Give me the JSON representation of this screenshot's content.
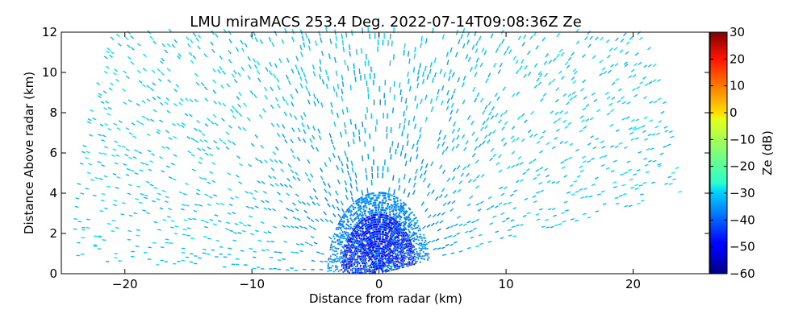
{
  "chart_data": {
    "type": "heatmap",
    "title": "LMU miraMACS 253.4 Deg. 2022-07-14T09:08:36Z  Ze",
    "xlabel": "Distance from radar (km)",
    "ylabel": "Distance Above radar  (km)",
    "xlim": [
      -25,
      26
    ],
    "ylim": [
      0,
      12
    ],
    "x_ticks": [
      -20,
      -10,
      0,
      10,
      20
    ],
    "x_tick_labels": [
      "−20",
      "−10",
      "0",
      "10",
      "20"
    ],
    "y_ticks": [
      0,
      2,
      4,
      6,
      8,
      10,
      12
    ],
    "y_tick_labels": [
      "0",
      "2",
      "4",
      "6",
      "8",
      "10",
      "12"
    ],
    "grid": false,
    "scan": {
      "description": "RHI scan, polar sector from about 10 deg elevation (right) to about 178 deg (left)",
      "min_elevation_deg": 10,
      "max_elevation_deg": 178,
      "max_range_km": 24,
      "near_radar_ze_dB": -45,
      "far_ze_dB": -30
    },
    "colorbar": {
      "label": "Ze (dB)",
      "min": -60,
      "max": 30,
      "ticks": [
        30,
        20,
        10,
        0,
        -10,
        -20,
        -30,
        -40,
        -50,
        -60
      ],
      "tick_labels": [
        "30",
        "20",
        "10",
        "0",
        "−10",
        "−20",
        "−30",
        "−40",
        "−50",
        "−60"
      ],
      "colormap": "jet"
    }
  }
}
